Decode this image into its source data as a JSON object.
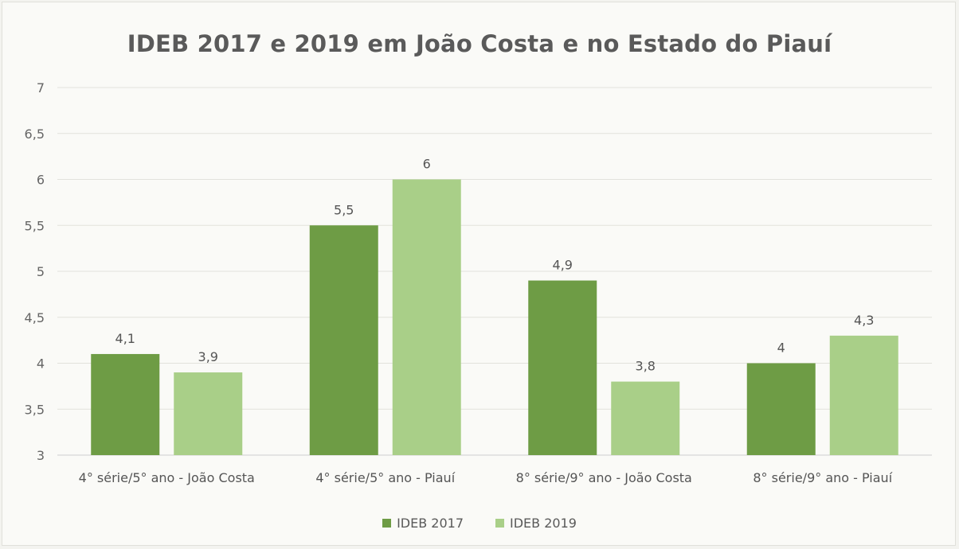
{
  "chart_data": {
    "type": "bar",
    "title": "IDEB 2017 e 2019 em João Costa e no Estado do Piauí",
    "xlabel": "",
    "ylabel": "",
    "categories": [
      "4° série/5° ano - João Costa",
      "4° série/5° ano - Piauí",
      "8° série/9° ano - João Costa",
      "8° série/9° ano - Piauí"
    ],
    "series": [
      {
        "name": "IDEB 2017",
        "values": [
          4.1,
          5.5,
          4.9,
          4.0
        ],
        "labels": [
          "4,1",
          "5,5",
          "4,9",
          "4"
        ],
        "color": "#6e9c45"
      },
      {
        "name": "IDEB 2019",
        "values": [
          3.9,
          6.0,
          3.8,
          4.3
        ],
        "labels": [
          "3,9",
          "6",
          "3,8",
          "4,3"
        ],
        "color": "#a9cf88"
      }
    ],
    "ylim": [
      3,
      7
    ],
    "yticks": [
      3,
      3.5,
      4,
      4.5,
      5,
      5.5,
      6,
      6.5,
      7
    ],
    "ytick_labels": [
      "3",
      "3,5",
      "4",
      "4,5",
      "5",
      "5,5",
      "6",
      "6,5",
      "7"
    ],
    "grid": true,
    "legend_position": "bottom"
  }
}
